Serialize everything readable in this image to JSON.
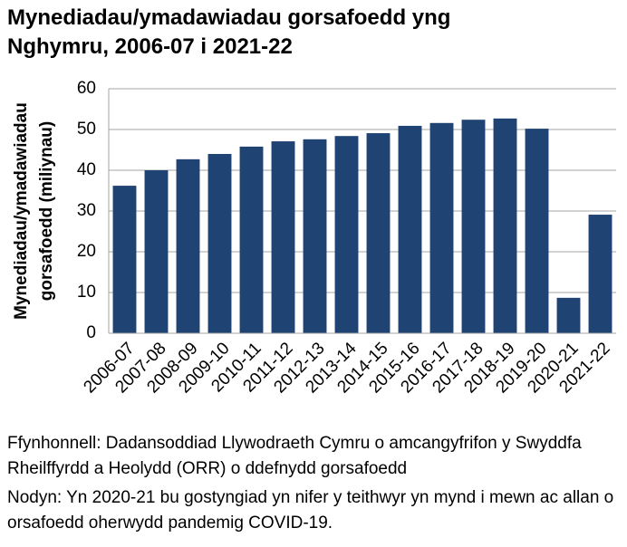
{
  "chart_data": {
    "type": "bar",
    "title": "Mynediadau/ymadawiadau gorsafoedd yng Nghymru, 2006-07 i 2021-22",
    "ylabel": [
      "Mynediadau/ymadawiadau",
      "gorsafoedd (miliynau)"
    ],
    "categories": [
      "2006-07",
      "2007-08",
      "2008-09",
      "2009-10",
      "2010-11",
      "2011-12",
      "2012-13",
      "2013-14",
      "2014-15",
      "2015-16",
      "2016-17",
      "2017-18",
      "2018-19",
      "2019-20",
      "2020-21",
      "2021-22"
    ],
    "values": [
      36.2,
      40.0,
      42.7,
      44.0,
      45.8,
      47.1,
      47.6,
      48.4,
      49.1,
      50.9,
      51.6,
      52.4,
      52.7,
      50.2,
      8.7,
      29.1
    ],
    "color": "#1f4373",
    "ylim": [
      0,
      60
    ],
    "yticks": [
      0,
      10,
      20,
      30,
      40,
      50,
      60
    ],
    "grid": true,
    "source": "Ffynhonnell: Dadansoddiad Llywodraeth Cymru o amcangyfrifon y Swyddfa Rheilffyrdd a Heolydd (ORR) o ddefnydd gorsafoedd",
    "note": "Nodyn: Yn 2020-21 bu gostyngiad yn nifer y teithwyr yn mynd i mewn ac allan o orsafoedd oherwydd pandemig COVID-19."
  }
}
